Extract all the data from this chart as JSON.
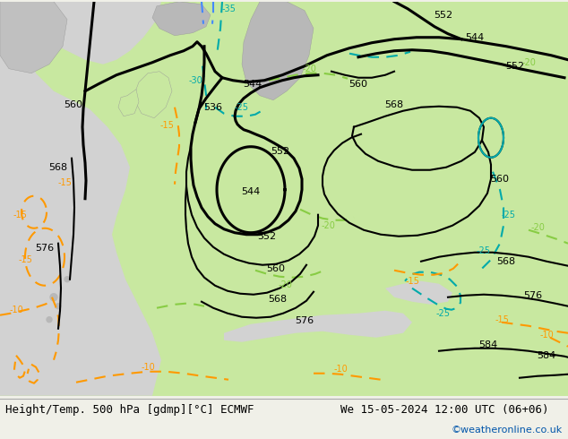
{
  "title_left": "Height/Temp. 500 hPa [gdmp][°C] ECMWF",
  "title_right": "We 15-05-2024 12:00 UTC (06+06)",
  "credit": "©weatheronline.co.uk",
  "sea_color": "#d2d2d2",
  "land_color": "#c8e8a0",
  "bg_footer": "#f0f0e8",
  "text_color": "#000000",
  "credit_color": "#0055aa",
  "z500_color": "#000000",
  "cyan_color": "#00aaaa",
  "blue_color": "#4488ff",
  "green_color": "#88cc44",
  "orange_color": "#ff9900",
  "font_title": 9,
  "font_label": 8,
  "font_credit": 8
}
